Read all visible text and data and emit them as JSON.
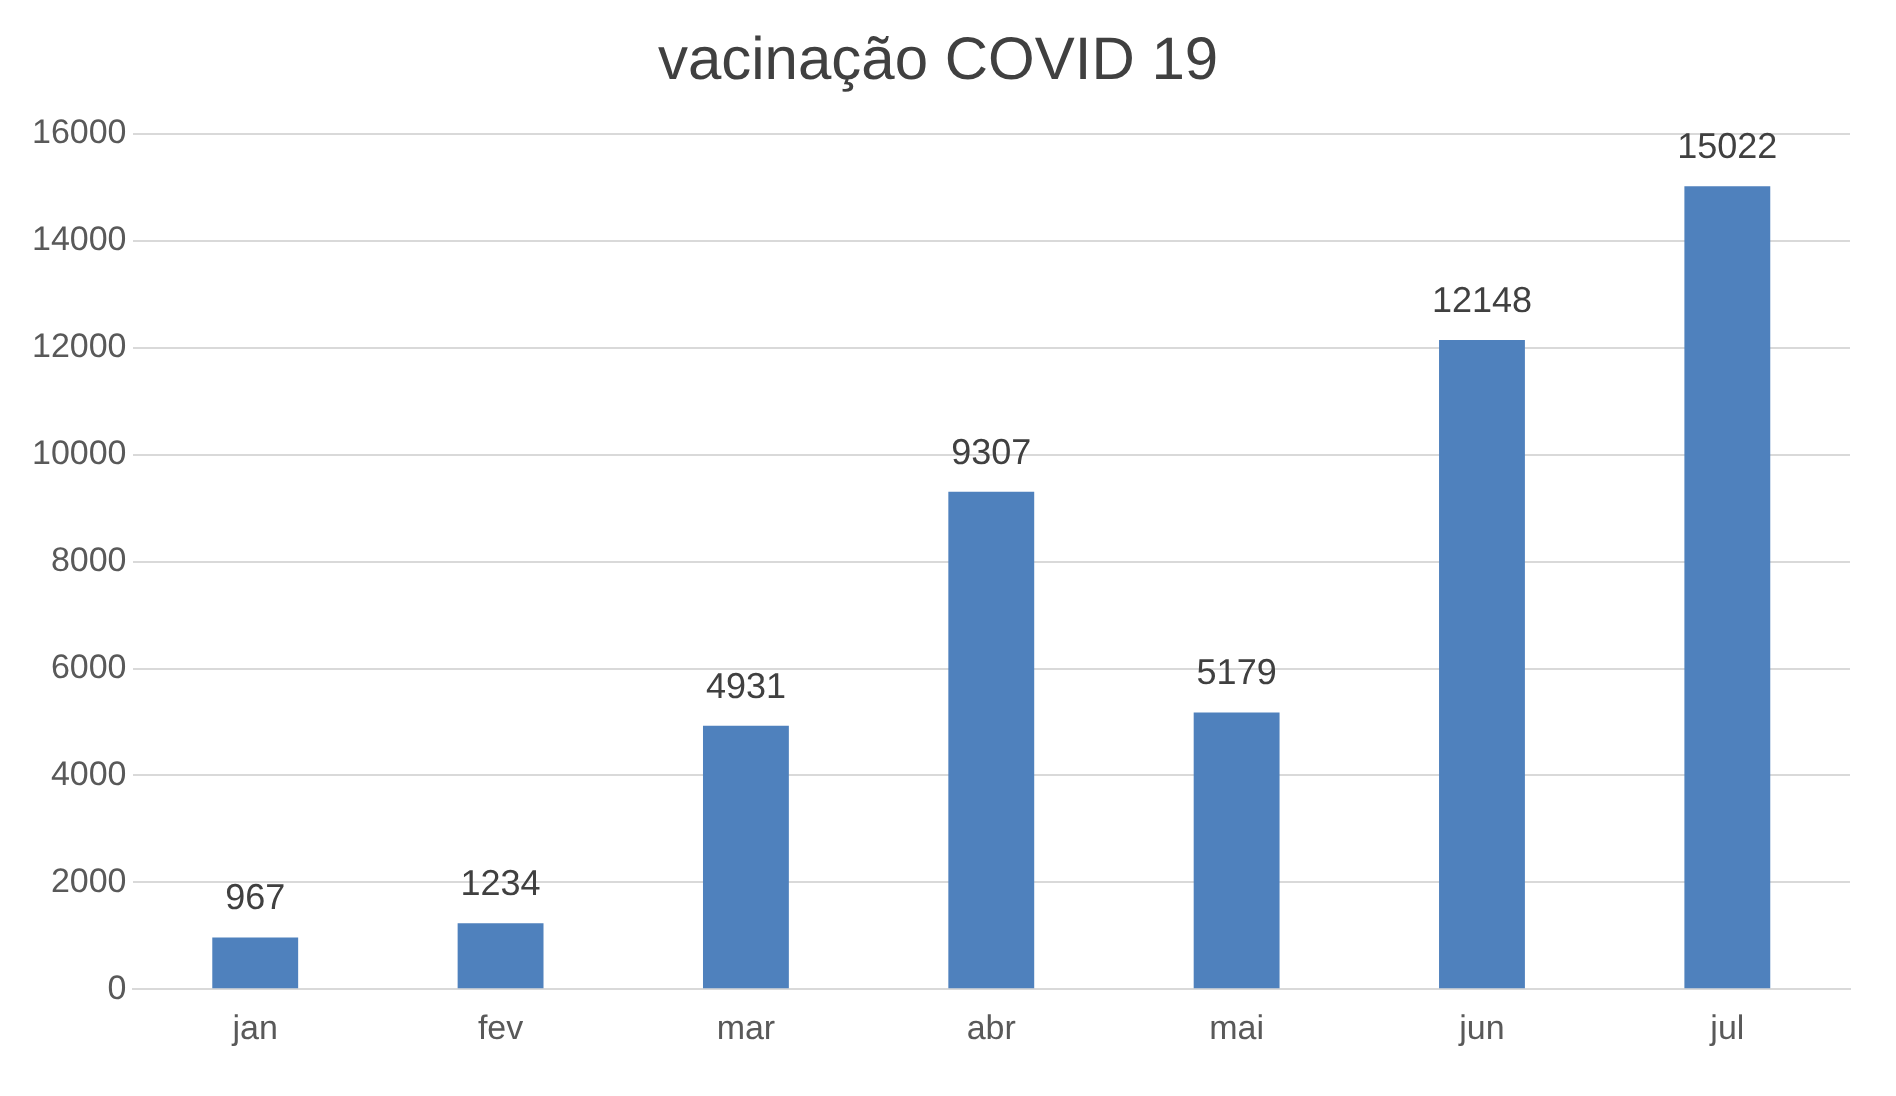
{
  "chart_data": {
    "type": "bar",
    "title": "vacinação COVID 19",
    "categories": [
      "jan",
      "fev",
      "mar",
      "abr",
      "mai",
      "jun",
      "jul"
    ],
    "values": [
      967,
      1234,
      4931,
      9307,
      5179,
      12148,
      15022
    ],
    "color": "#4f81bd",
    "ylim": [
      0,
      16000
    ],
    "yticks": [
      0,
      2000,
      4000,
      6000,
      8000,
      10000,
      12000,
      14000,
      16000
    ],
    "grid": "y",
    "legend": false,
    "data_labels": true
  }
}
